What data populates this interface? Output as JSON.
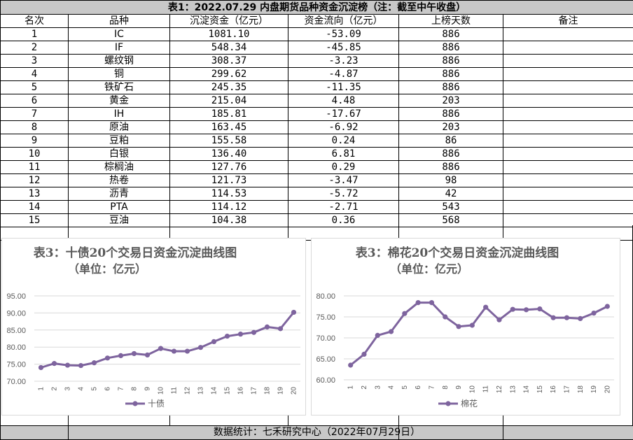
{
  "table": {
    "title": "表1：2022.07.29 内盘期货品种资金沉淀榜（注：截至中午收盘）",
    "headers": [
      "名次",
      "品种",
      "沉淀资金（亿元）",
      "资金流向（亿元）",
      "上榜天数",
      "备注"
    ],
    "rows": [
      [
        "1",
        "IC",
        "1081.10",
        "-53.09",
        "886",
        ""
      ],
      [
        "2",
        "IF",
        "548.34",
        "-45.85",
        "886",
        ""
      ],
      [
        "3",
        "螺纹钢",
        "308.37",
        "-3.23",
        "886",
        ""
      ],
      [
        "4",
        "铜",
        "299.62",
        "-4.87",
        "886",
        ""
      ],
      [
        "5",
        "铁矿石",
        "245.35",
        "-11.35",
        "886",
        ""
      ],
      [
        "6",
        "黄金",
        "215.04",
        "4.48",
        "203",
        ""
      ],
      [
        "7",
        "IH",
        "185.81",
        "-17.67",
        "886",
        ""
      ],
      [
        "8",
        "原油",
        "163.45",
        "-6.92",
        "203",
        ""
      ],
      [
        "9",
        "豆粕",
        "155.58",
        "0.24",
        "86",
        ""
      ],
      [
        "10",
        "白银",
        "136.40",
        "6.81",
        "886",
        ""
      ],
      [
        "11",
        "棕榈油",
        "127.76",
        "0.29",
        "886",
        ""
      ],
      [
        "12",
        "热卷",
        "121.73",
        "-3.47",
        "98",
        ""
      ],
      [
        "13",
        "沥青",
        "114.53",
        "-5.72",
        "42",
        ""
      ],
      [
        "14",
        "PTA",
        "114.12",
        "-2.71",
        "543",
        ""
      ],
      [
        "15",
        "豆油",
        "104.38",
        "0.36",
        "568",
        ""
      ],
      [
        "",
        "",
        "",
        "",
        "",
        ""
      ]
    ]
  },
  "footer": {
    "text": "数据统计：七禾研究中心（2022年07月29日）"
  },
  "colors": {
    "line": "#7e649e",
    "title_gray": "#595959",
    "header_bg": "#c8c8c8",
    "grid": "#d9d9d9"
  },
  "chart_data": [
    {
      "type": "line",
      "title": "表3：十债20个交易日资金沉淀曲线图",
      "subtitle": "（单位：亿元）",
      "x": [
        1,
        2,
        3,
        4,
        5,
        6,
        7,
        8,
        9,
        10,
        11,
        12,
        13,
        14,
        15,
        16,
        17,
        18,
        19,
        20
      ],
      "series": [
        {
          "name": "十债",
          "values": [
            74.0,
            75.2,
            74.7,
            74.6,
            75.4,
            76.8,
            77.5,
            78.1,
            77.7,
            79.6,
            78.8,
            78.8,
            79.9,
            81.6,
            83.2,
            83.8,
            84.3,
            85.9,
            85.4,
            90.2
          ]
        }
      ],
      "ylim": [
        70,
        95
      ],
      "yticks": [
        "70.00",
        "75.00",
        "80.00",
        "85.00",
        "90.00",
        "95.00"
      ],
      "legend": "bottom",
      "grid": true
    },
    {
      "type": "line",
      "title": "表3：棉花20个交易日资金沉淀曲线图",
      "subtitle": "（单位：亿元）",
      "x": [
        1,
        2,
        3,
        4,
        5,
        6,
        7,
        8,
        9,
        10,
        11,
        12,
        13,
        14,
        15,
        16,
        17,
        18,
        19,
        20
      ],
      "series": [
        {
          "name": "棉花",
          "values": [
            63.5,
            66.1,
            70.6,
            71.5,
            75.8,
            78.4,
            78.4,
            75.0,
            72.7,
            73.0,
            77.3,
            74.3,
            76.8,
            76.7,
            76.9,
            74.8,
            74.8,
            74.6,
            75.9,
            77.5
          ]
        }
      ],
      "ylim": [
        60,
        80
      ],
      "yticks": [
        "60.00",
        "65.00",
        "70.00",
        "75.00",
        "80.00"
      ],
      "legend": "bottom",
      "grid": true
    }
  ]
}
